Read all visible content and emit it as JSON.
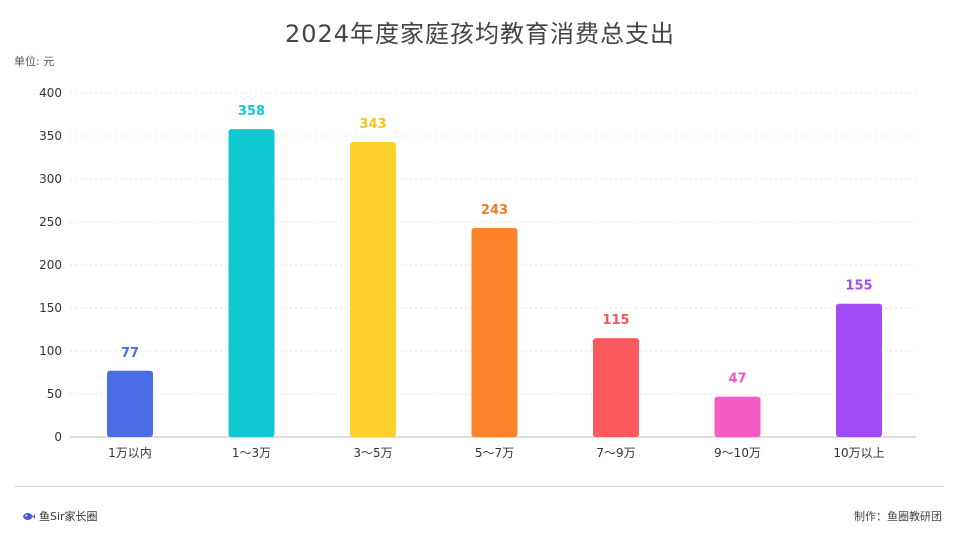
{
  "unit_label": "单位: 元",
  "footer": {
    "brand": "鱼Sir家长圈",
    "credit": "制作：鱼圈教研团",
    "brand_icon": "fish-logo-icon"
  },
  "colors": {
    "grid": "#e3e3e3",
    "axis": "#bbbbbb",
    "brand_icon": "#4a5bd4"
  },
  "chart_data": {
    "type": "bar",
    "title": "2024年度家庭孩均教育消费总支出",
    "xlabel": "",
    "ylabel": "",
    "categories": [
      "1万以内",
      "1～3万",
      "3～5万",
      "5～7万",
      "7～9万",
      "9～10万",
      "10万以上"
    ],
    "values": [
      77,
      358,
      343,
      243,
      115,
      47,
      155
    ],
    "bar_colors": [
      "#4a6de5",
      "#10c8d2",
      "#fdd12b",
      "#fd832b",
      "#fc5a5f",
      "#f45cc3",
      "#a14cf5"
    ],
    "label_colors": [
      "#4a6de5",
      "#10c8d2",
      "#f6c21e",
      "#f47a22",
      "#f4555a",
      "#ee58be",
      "#a14cf5"
    ],
    "ylim": [
      0,
      400
    ],
    "yticks": [
      0,
      50,
      100,
      150,
      200,
      250,
      300,
      350,
      400
    ],
    "grid": true,
    "grid_style": "dotted",
    "legend": "none"
  }
}
